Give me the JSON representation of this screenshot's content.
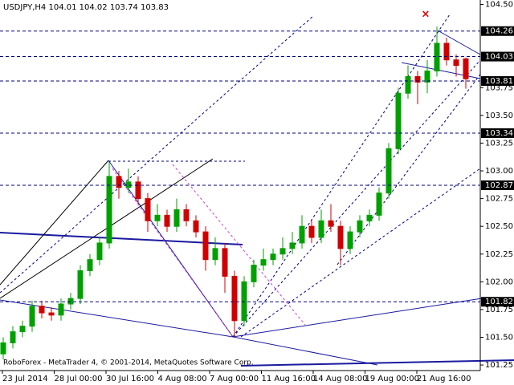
{
  "chart_data": {
    "type": "candlestick",
    "title": "USDJPY,H4  104.01 104.02 103.74 103.83",
    "footer": "RoboForex - MetaTrader 4, © 2001-2014, MetaQuotes Software Corp.",
    "x_labels": [
      "23 Jul 2014",
      "28 Jul 00:00",
      "30 Jul 16:00",
      "4 Aug 08:00",
      "7 Aug 00:00",
      "11 Aug 16:00",
      "14 Aug 08:00",
      "19 Aug 00:00",
      "21 Aug 16:00"
    ],
    "open": [
      101.35,
      101.45,
      101.55,
      101.6,
      101.78,
      101.72,
      101.7,
      101.8,
      101.85,
      102.1,
      102.2,
      102.35,
      102.95,
      102.85,
      102.9,
      102.75,
      102.55,
      102.6,
      102.5,
      102.65,
      102.55,
      102.45,
      102.2,
      102.3,
      102.05,
      101.65,
      102.0,
      102.15,
      102.2,
      102.25,
      102.3,
      102.35,
      102.5,
      102.4,
      102.55,
      102.5,
      102.3,
      102.45,
      102.55,
      102.6,
      102.8,
      103.2,
      103.7,
      103.85,
      103.8,
      103.9,
      104.15,
      104.0,
      104.01
    ],
    "high": [
      101.5,
      101.6,
      101.65,
      101.83,
      101.83,
      101.77,
      101.85,
      101.9,
      102.15,
      102.25,
      102.4,
      103.08,
      103.0,
      103.02,
      102.95,
      102.8,
      102.7,
      102.65,
      102.75,
      102.7,
      102.6,
      102.5,
      102.4,
      102.35,
      102.1,
      102.05,
      102.2,
      102.3,
      102.3,
      102.4,
      102.45,
      102.6,
      102.55,
      102.65,
      102.7,
      102.55,
      102.5,
      102.6,
      102.65,
      102.85,
      103.25,
      103.75,
      103.95,
      103.9,
      104.0,
      104.3,
      104.2,
      104.05,
      104.02
    ],
    "low": [
      101.3,
      101.4,
      101.5,
      101.55,
      101.67,
      101.65,
      101.65,
      101.75,
      101.8,
      102.05,
      102.15,
      102.3,
      102.75,
      102.8,
      102.7,
      102.45,
      102.5,
      102.45,
      102.45,
      102.5,
      102.4,
      102.1,
      102.15,
      101.9,
      101.5,
      101.6,
      101.95,
      102.1,
      102.15,
      102.2,
      102.25,
      102.3,
      102.35,
      102.35,
      102.45,
      102.15,
      102.25,
      102.4,
      102.5,
      102.55,
      102.75,
      103.15,
      103.65,
      103.6,
      103.7,
      103.85,
      103.95,
      103.85,
      103.74
    ],
    "close": [
      101.45,
      101.55,
      101.6,
      101.78,
      101.72,
      101.7,
      101.8,
      101.85,
      102.1,
      102.2,
      102.35,
      102.95,
      102.85,
      102.9,
      102.75,
      102.55,
      102.6,
      102.5,
      102.65,
      102.55,
      102.45,
      102.2,
      102.3,
      102.05,
      101.65,
      102.0,
      102.15,
      102.2,
      102.25,
      102.3,
      102.35,
      102.5,
      102.4,
      102.55,
      102.5,
      102.3,
      102.45,
      102.55,
      102.6,
      102.8,
      103.2,
      103.7,
      103.85,
      103.8,
      103.9,
      104.15,
      104.0,
      103.95,
      103.83
    ],
    "up_color": "#00a000",
    "down_color": "#d00000",
    "levels": [
      104.26,
      104.03,
      103.81,
      103.34,
      102.87,
      101.82
    ],
    "level_color": "#000080",
    "ylim": [
      101.2,
      104.54
    ],
    "yticks": [
      {
        "value": 104.5,
        "label": "104.50"
      },
      103.75,
      {
        "value": 103.5,
        "label": "103.50"
      },
      103.25,
      {
        "value": 103.0,
        "label": "103.00"
      },
      102.75,
      {
        "value": 102.5,
        "label": "102.50"
      },
      102.25,
      {
        "value": 102.0,
        "label": "102.00"
      },
      101.75,
      {
        "value": 101.5,
        "label": "101.50"
      },
      101.25
    ]
  }
}
